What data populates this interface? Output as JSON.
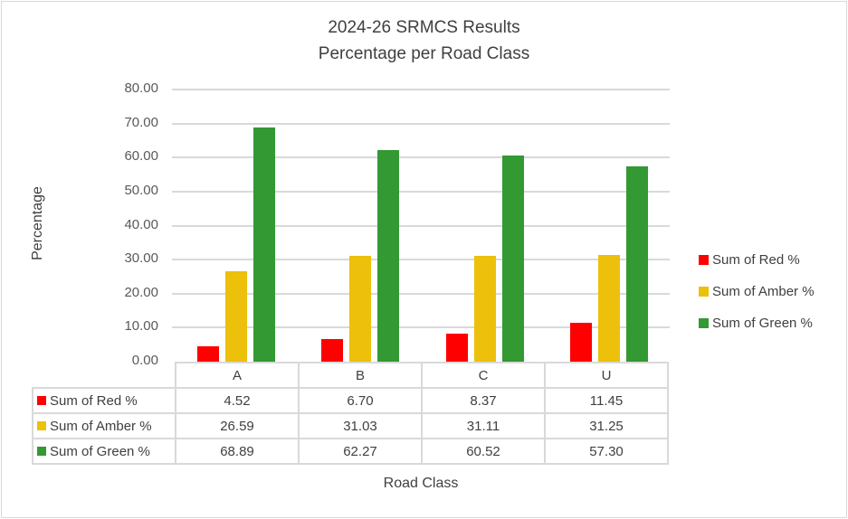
{
  "chart_data": {
    "type": "bar",
    "title": "2024-26 SRMCS Results",
    "subtitle": "Percentage per Road Class",
    "xlabel": "Road Class",
    "ylabel": "Percentage",
    "ylim": [
      0,
      80
    ],
    "yticks": [
      "0.00",
      "10.00",
      "20.00",
      "30.00",
      "40.00",
      "50.00",
      "60.00",
      "70.00",
      "80.00"
    ],
    "grid": true,
    "legend_position": "right",
    "data_table": true,
    "categories": [
      "A",
      "B",
      "C",
      "U"
    ],
    "series": [
      {
        "name": "Sum of Red %",
        "color": "#ff0000",
        "values": [
          4.52,
          6.7,
          8.37,
          11.45
        ],
        "labels": [
          "4.52",
          "6.70",
          "8.37",
          "11.45"
        ]
      },
      {
        "name": "Sum of Amber %",
        "color": "#ecc00b",
        "values": [
          26.59,
          31.03,
          31.11,
          31.25
        ],
        "labels": [
          "26.59",
          "31.03",
          "31.11",
          "31.25"
        ]
      },
      {
        "name": "Sum of Green %",
        "color": "#339933",
        "values": [
          68.89,
          62.27,
          60.52,
          57.3
        ],
        "labels": [
          "68.89",
          "62.27",
          "60.52",
          "57.30"
        ]
      }
    ]
  }
}
